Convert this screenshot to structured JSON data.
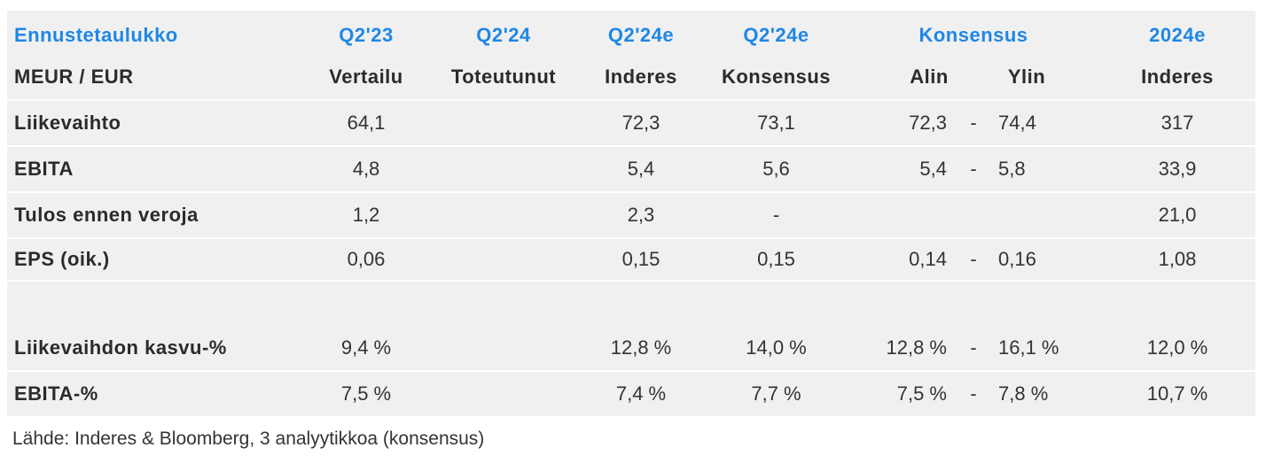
{
  "header": {
    "title": "Ennustetaulukko",
    "row1": [
      "Q2'23",
      "Q2'24",
      "Q2'24e",
      "Q2'24e",
      "Konsensus",
      "2024e"
    ],
    "unit": "MEUR / EUR",
    "row2": [
      "Vertailu",
      "Toteutunut",
      "Inderes",
      "Konsensus",
      "Alin",
      "Ylin",
      "Inderes"
    ]
  },
  "rows": [
    {
      "label": "Liikevaihto",
      "q223": "64,1",
      "q224": "",
      "inderes": "72,3",
      "kons": "73,1",
      "low": "72,3",
      "dash": "-",
      "high": "74,4",
      "y2024": "317"
    },
    {
      "label": "EBITA",
      "q223": "4,8",
      "q224": "",
      "inderes": "5,4",
      "kons": "5,6",
      "low": "5,4",
      "dash": "-",
      "high": "5,8",
      "y2024": "33,9"
    },
    {
      "label": "Tulos ennen veroja",
      "q223": "1,2",
      "q224": "",
      "inderes": "2,3",
      "kons": "-",
      "low": "",
      "dash": "",
      "high": "",
      "y2024": "21,0"
    },
    {
      "label": "EPS (oik.)",
      "q223": "0,06",
      "q224": "",
      "inderes": "0,15",
      "kons": "0,15",
      "low": "0,14",
      "dash": "-",
      "high": "0,16",
      "y2024": "1,08"
    },
    {
      "label": "Liikevaihdon kasvu-%",
      "q223": "9,4 %",
      "q224": "",
      "inderes": "12,8 %",
      "kons": "14,0 %",
      "low": "12,8 %",
      "dash": "-",
      "high": "16,1 %",
      "y2024": "12,0 %"
    },
    {
      "label": "EBITA-%",
      "q223": "7,5 %",
      "q224": "",
      "inderes": "7,4 %",
      "kons": "7,7 %",
      "low": "7,5 %",
      "dash": "-",
      "high": "7,8 %",
      "y2024": "10,7 %"
    }
  ],
  "source": "Lähde: Inderes & Bloomberg, 3 analyytikkoa  (konsensus)",
  "colors": {
    "header_accent": "#1f87e5",
    "panel_bg": "#f0f0f1"
  }
}
